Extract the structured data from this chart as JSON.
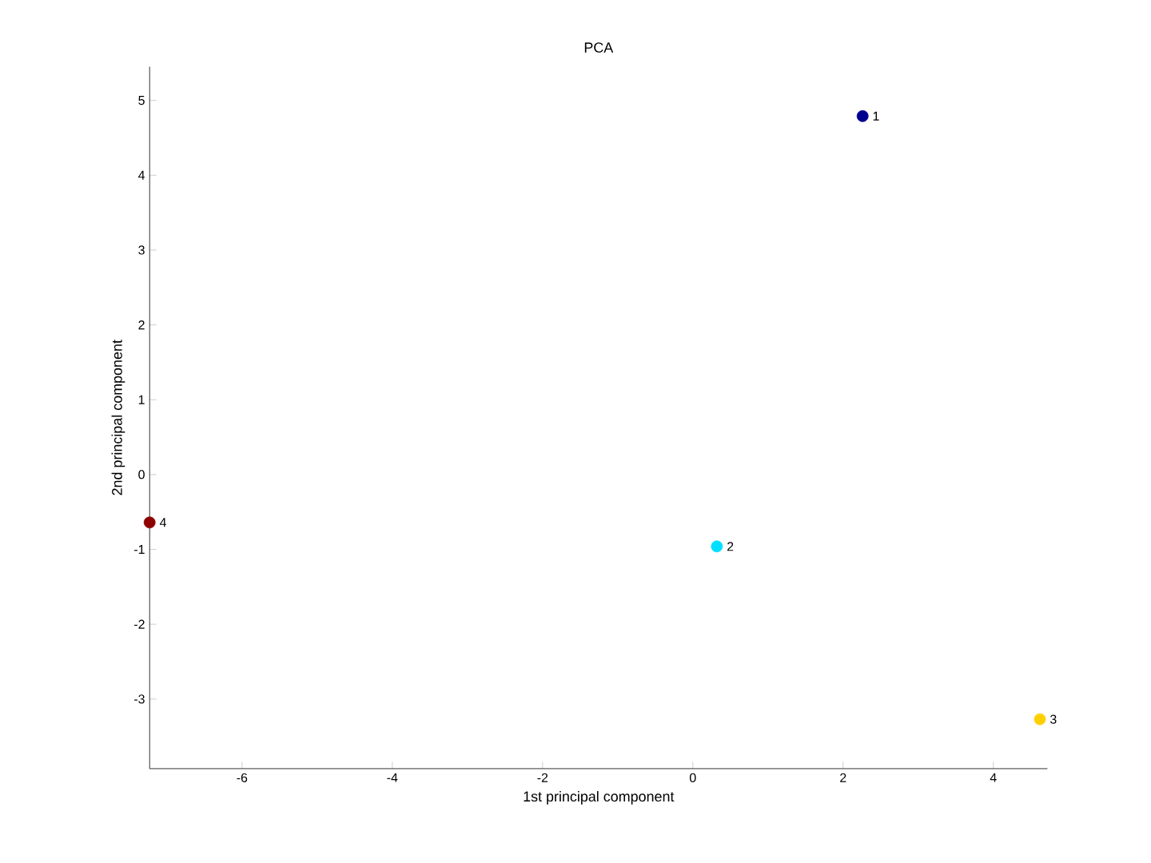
{
  "chart_data": {
    "type": "scatter",
    "title": "PCA",
    "xlabel": "1st principal component",
    "ylabel": "2nd principal component",
    "x": [
      2.26,
      0.32,
      4.62,
      -7.23
    ],
    "values": [
      4.79,
      -0.96,
      -3.27,
      -0.64
    ],
    "colors": [
      "#00008f",
      "#00dfff",
      "#ffcf00",
      "#8f0000"
    ],
    "annotations": [
      {
        "text": "1",
        "x": 2.26,
        "y": 4.79
      },
      {
        "text": "2",
        "x": 0.32,
        "y": -0.96
      },
      {
        "text": "3",
        "x": 4.62,
        "y": -3.27
      },
      {
        "text": "4",
        "x": -7.23,
        "y": -0.64
      }
    ],
    "xlim": [
      -7.23,
      4.72
    ],
    "ylim": [
      -3.93,
      5.45
    ],
    "xticks": [
      -6,
      -4,
      -2,
      0,
      2,
      4
    ],
    "yticks": [
      -3,
      -2,
      -1,
      0,
      1,
      2,
      3,
      4,
      5
    ]
  }
}
